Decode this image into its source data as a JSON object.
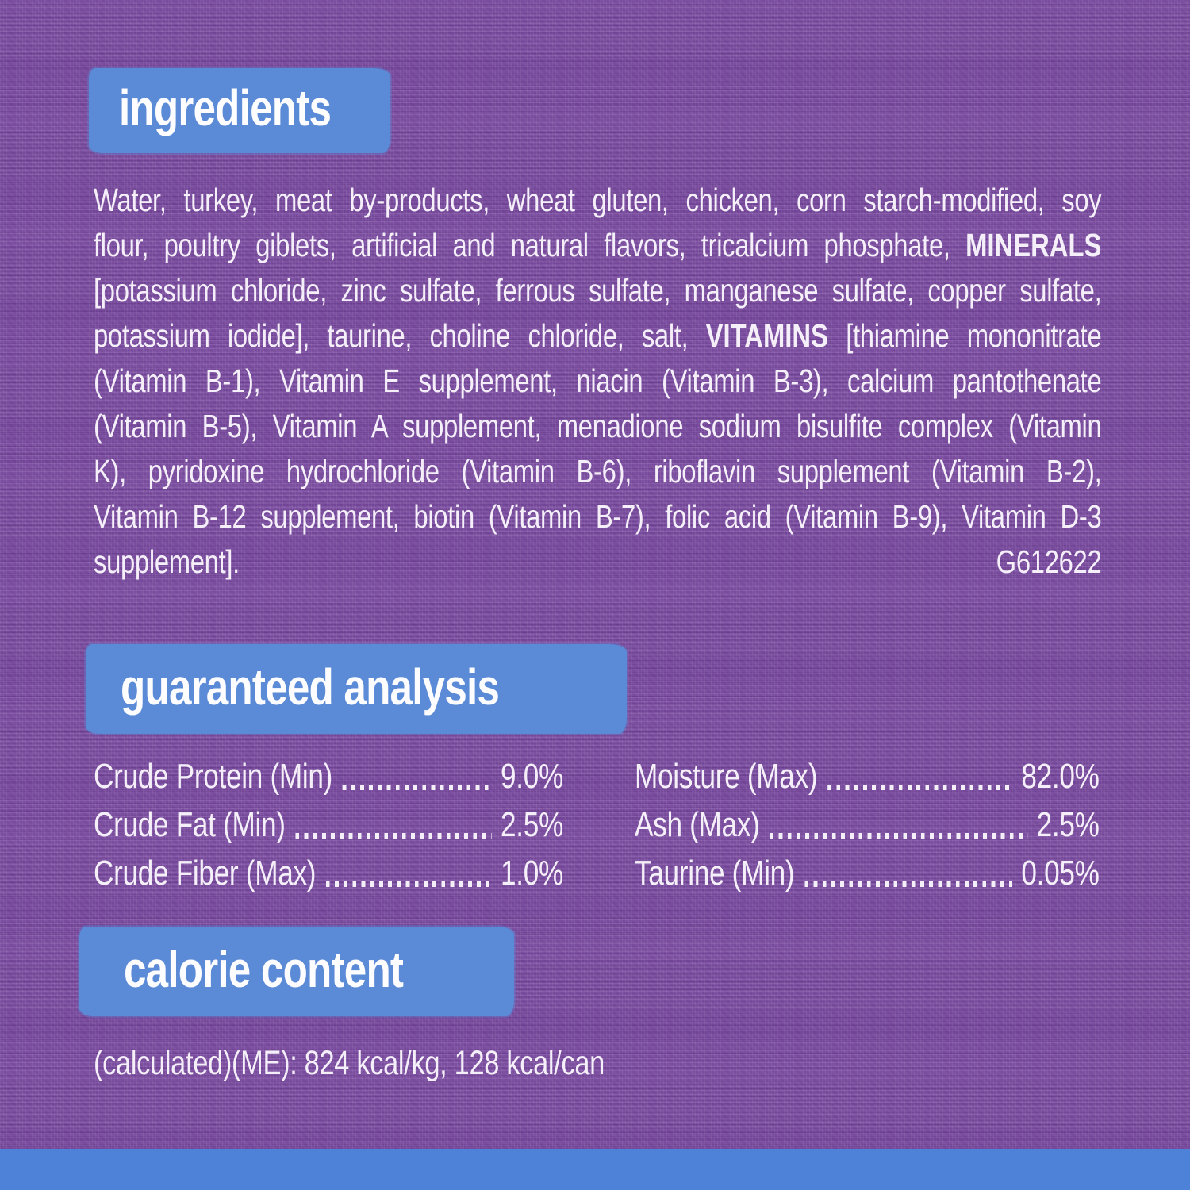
{
  "label": {
    "colors": {
      "background_purple": "#7b4da1",
      "header_bar_blue": "#5b8ad6",
      "bottom_strip_blue": "#4d82d8",
      "text": "#f5eff9"
    },
    "ingredients": {
      "title": "ingredients",
      "lines": [
        {
          "justify": true,
          "parts": [
            {
              "text": "Water, turkey, meat by-products, wheat gluten, chicken, corn starch-modified, soy",
              "bold": false
            }
          ]
        },
        {
          "justify": true,
          "parts": [
            {
              "text": "flour, poultry giblets, artificial and natural flavors, tricalcium phosphate, ",
              "bold": false
            },
            {
              "text": "MINERALS",
              "bold": true
            }
          ]
        },
        {
          "justify": true,
          "parts": [
            {
              "text": "[potassium chloride, zinc sulfate, ferrous sulfate, manganese sulfate, copper sulfate,",
              "bold": false
            }
          ]
        },
        {
          "justify": true,
          "parts": [
            {
              "text": "potassium iodide], taurine, choline chloride, salt, ",
              "bold": false
            },
            {
              "text": "VITAMINS",
              "bold": true
            },
            {
              "text": " [thiamine mononitrate",
              "bold": false
            }
          ]
        },
        {
          "justify": true,
          "parts": [
            {
              "text": "(Vitamin B-1), Vitamin E supplement, niacin (Vitamin B-3), calcium pantothenate",
              "bold": false
            }
          ]
        },
        {
          "justify": true,
          "parts": [
            {
              "text": "(Vitamin B-5), Vitamin A supplement, menadione sodium bisulfite complex (Vitamin",
              "bold": false
            }
          ]
        },
        {
          "justify": true,
          "parts": [
            {
              "text": "K), pyridoxine hydrochloride (Vitamin B-6), riboflavin supplement (Vitamin B-2),",
              "bold": false
            }
          ]
        },
        {
          "justify": true,
          "parts": [
            {
              "text": "Vitamin B-12 supplement, biotin (Vitamin B-7), folic acid (Vitamin B-9), Vitamin D-3",
              "bold": false
            }
          ]
        },
        {
          "justify": false,
          "parts": [
            {
              "text": "supplement].",
              "bold": false
            }
          ],
          "right_text": "G612622"
        }
      ]
    },
    "guaranteed_analysis": {
      "title": "guaranteed analysis",
      "left_rows": [
        {
          "label": "Crude Protein (Min)",
          "value": "9.0%"
        },
        {
          "label": "Crude Fat (Min)",
          "value": "2.5%"
        },
        {
          "label": "Crude Fiber (Max)",
          "value": "1.0%"
        }
      ],
      "right_rows": [
        {
          "label": "Moisture (Max)",
          "value": "82.0%"
        },
        {
          "label": "Ash (Max)",
          "value": "2.5%"
        },
        {
          "label": "Taurine (Min)",
          "value": "0.05%"
        }
      ]
    },
    "calorie_content": {
      "title": "calorie content",
      "text": "(calculated)(ME): 824 kcal/kg, 128 kcal/can"
    }
  }
}
